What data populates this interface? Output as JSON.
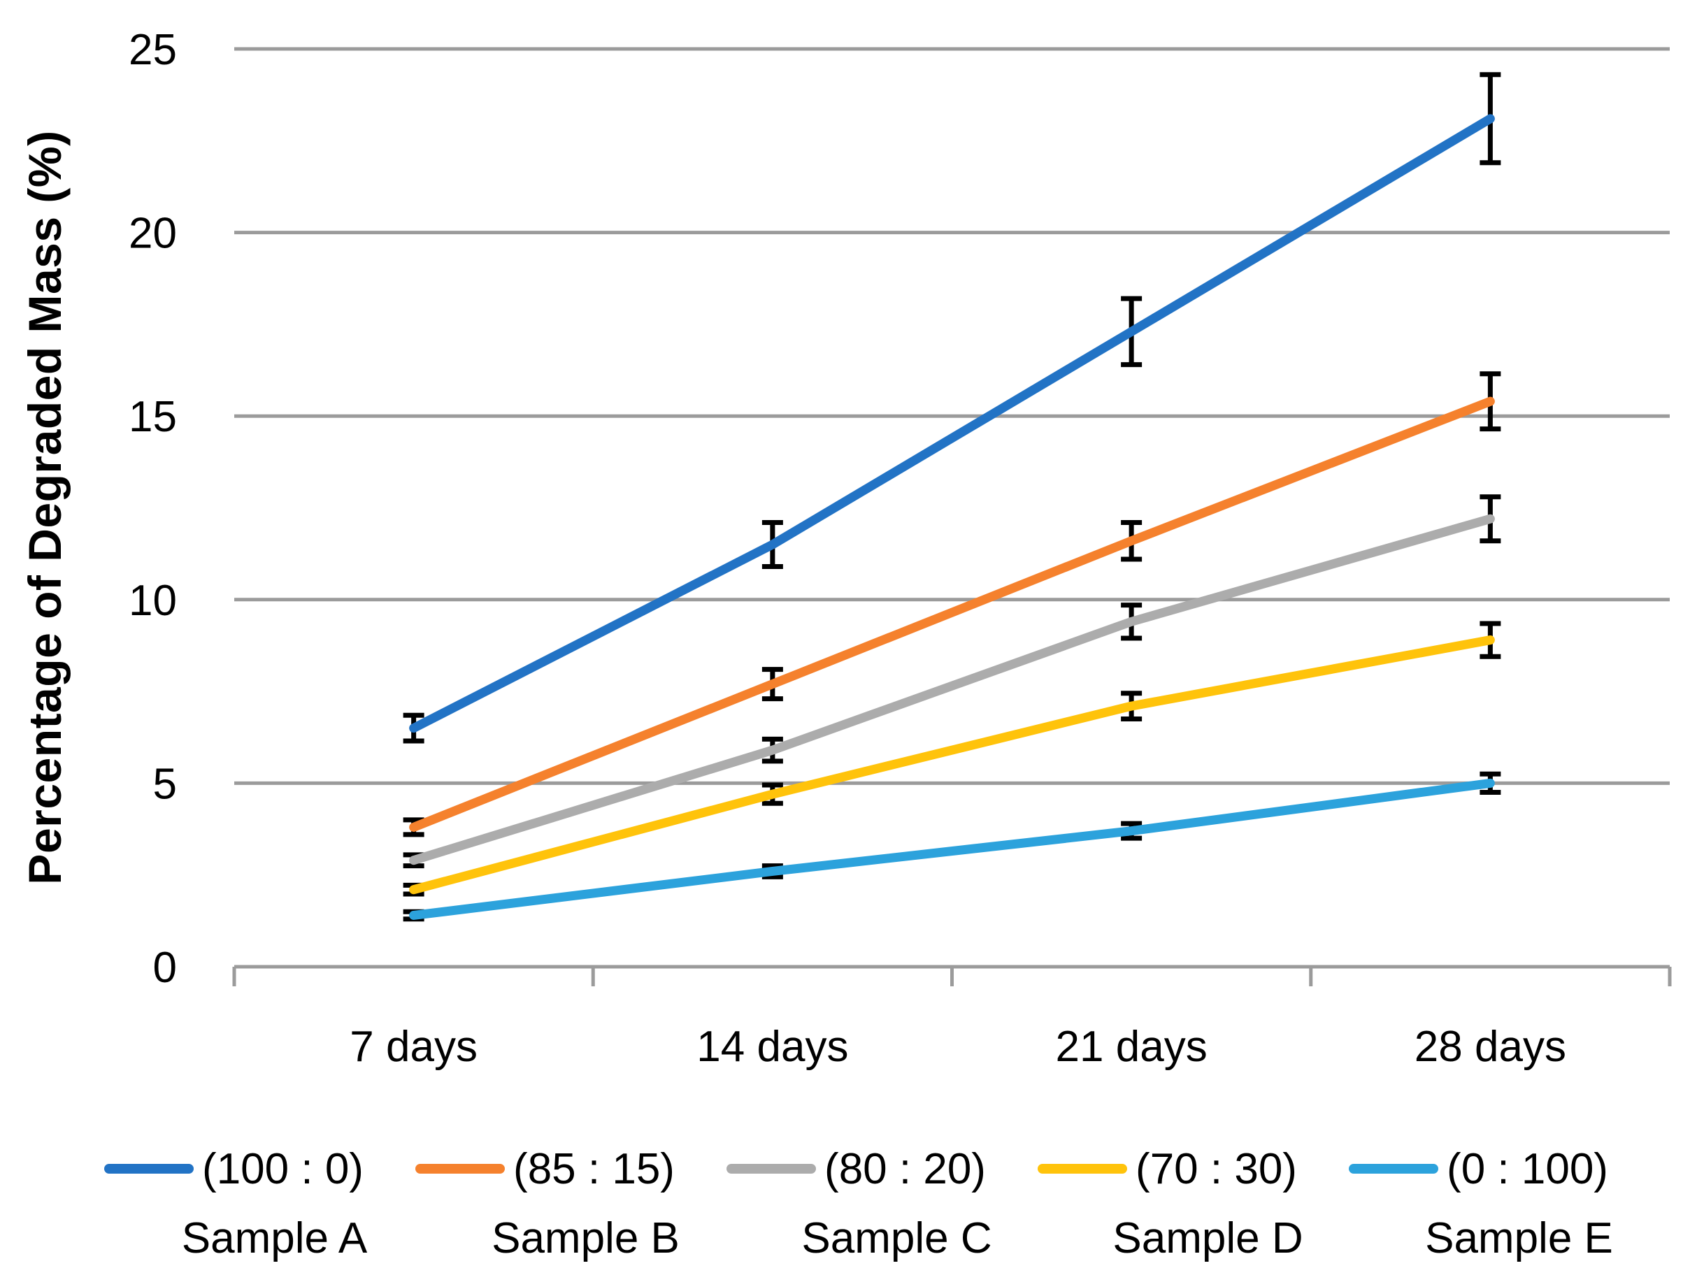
{
  "chart_data": {
    "type": "line",
    "title": "",
    "xlabel": "",
    "ylabel": "Percentage of Degraded Mass (%)",
    "categories": [
      "7 days",
      "14 days",
      "21 days",
      "28 days"
    ],
    "ylim": [
      0,
      25
    ],
    "yticks": [
      0,
      5,
      10,
      15,
      20,
      25
    ],
    "grid": "horizontal",
    "grid_color": "#9B9B9B",
    "error_bar_color": "#000000",
    "text_color": "#000000",
    "legend_position": "bottom",
    "series": [
      {
        "name": "(100 : 0)",
        "sample": "Sample A",
        "color": "#2273C5",
        "values": [
          6.5,
          11.5,
          17.3,
          23.1
        ],
        "errors": [
          0.35,
          0.6,
          0.9,
          1.2
        ]
      },
      {
        "name": "(85 : 15)",
        "sample": "Sample B",
        "color": "#F5812D",
        "values": [
          3.8,
          7.7,
          11.6,
          15.4
        ],
        "errors": [
          0.2,
          0.4,
          0.5,
          0.75
        ]
      },
      {
        "name": "(80 : 20)",
        "sample": "Sample C",
        "color": "#ACACAC",
        "values": [
          2.9,
          5.9,
          9.4,
          12.2
        ],
        "errors": [
          0.15,
          0.3,
          0.45,
          0.6
        ]
      },
      {
        "name": "(70 : 30)",
        "sample": "Sample D",
        "color": "#FFC30B",
        "values": [
          2.1,
          4.7,
          7.1,
          8.9
        ],
        "errors": [
          0.12,
          0.25,
          0.35,
          0.45
        ]
      },
      {
        "name": "(0 : 100)",
        "sample": "Sample E",
        "color": "#2CA2DC",
        "values": [
          1.4,
          2.6,
          3.7,
          5.0
        ],
        "errors": [
          0.1,
          0.15,
          0.2,
          0.25
        ]
      }
    ]
  }
}
